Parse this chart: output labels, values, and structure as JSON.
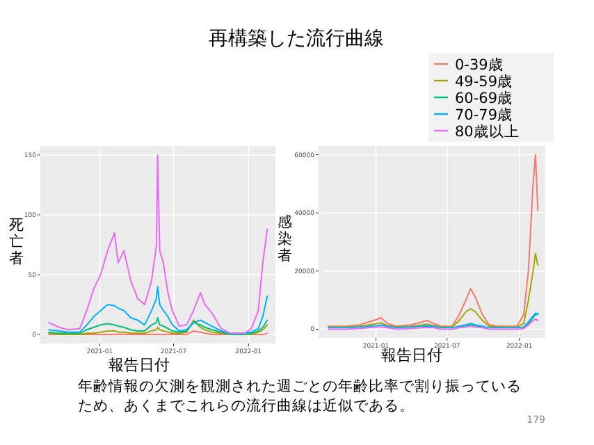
{
  "chart_data": [
    {
      "type": "line",
      "title": "再構築した流行曲線",
      "xlabel": "報告日付",
      "ylabel": "死亡者",
      "grid": true,
      "marker": "none",
      "line_style": "solid",
      "x": [
        "2020-08-29",
        "2020-09-23",
        "2020-10-16",
        "2020-11-13",
        "2020-11-30",
        "2020-12-17",
        "2021-01-03",
        "2021-01-20",
        "2021-02-06",
        "2021-02-15",
        "2021-03-01",
        "2021-03-18",
        "2021-04-04",
        "2021-04-21",
        "2021-05-08",
        "2021-05-20",
        "2021-05-23",
        "2021-05-28",
        "2021-06-06",
        "2021-06-17",
        "2021-06-28",
        "2021-07-15",
        "2021-08-02",
        "2021-08-19",
        "2021-09-05",
        "2021-09-16",
        "2021-10-03",
        "2021-10-26",
        "2021-11-17",
        "2021-12-22",
        "2022-01-08",
        "2022-01-25",
        "2022-02-05",
        "2022-02-16"
      ],
      "xlim": [
        "2020-08-08",
        "2022-03-08"
      ],
      "xticks": [
        {
          "value": "2021-01-01",
          "label": "2021-01"
        },
        {
          "value": "2021-07-01",
          "label": "2021-07"
        },
        {
          "value": "2022-01-01",
          "label": "2022-01"
        }
      ],
      "ylim": [
        -7.5,
        157.5
      ],
      "yticks": [
        0,
        50,
        100,
        150
      ],
      "series": [
        {
          "color": "#f8766d",
          "values": [
            0,
            0,
            0,
            0,
            0,
            0,
            0,
            0,
            0,
            0,
            0,
            0,
            0,
            0,
            0,
            0,
            0,
            0,
            0,
            0,
            0,
            0,
            0,
            3,
            2,
            1,
            0,
            0,
            0,
            0,
            0,
            0,
            0,
            1
          ]
        },
        {
          "color": "#a3a500",
          "values": [
            1,
            0,
            0,
            0,
            1,
            1,
            2,
            3,
            3,
            2,
            2,
            1,
            1,
            1,
            3,
            4,
            6,
            4,
            3,
            2,
            1,
            1,
            2,
            12,
            6,
            4,
            2,
            1,
            0,
            0,
            0,
            2,
            4,
            8
          ]
        },
        {
          "color": "#00bf7d",
          "values": [
            2,
            1,
            1,
            1,
            4,
            6,
            8,
            9,
            8,
            7,
            6,
            4,
            3,
            3,
            8,
            10,
            14,
            8,
            7,
            5,
            3,
            2,
            3,
            10,
            8,
            6,
            4,
            2,
            0,
            0,
            1,
            3,
            6,
            12
          ]
        },
        {
          "color": "#00b0f6",
          "values": [
            4,
            3,
            2,
            2,
            8,
            15,
            20,
            25,
            24,
            22,
            20,
            14,
            12,
            8,
            20,
            30,
            40,
            25,
            20,
            15,
            8,
            3,
            4,
            10,
            12,
            10,
            7,
            3,
            1,
            1,
            2,
            5,
            15,
            32
          ]
        },
        {
          "color": "#e76bf3",
          "values": [
            10,
            6,
            4,
            5,
            20,
            38,
            50,
            70,
            85,
            60,
            70,
            45,
            30,
            25,
            45,
            75,
            150,
            70,
            60,
            35,
            20,
            7,
            8,
            20,
            35,
            25,
            18,
            5,
            1,
            1,
            5,
            20,
            60,
            88
          ]
        }
      ]
    },
    {
      "type": "line",
      "xlabel": "報告日付",
      "ylabel": "感染者",
      "grid": true,
      "marker": "none",
      "line_style": "solid",
      "legend": "top right",
      "annotations": [
        "年齢情報の欠測を観測された週ごとの年齢比率で割り振っているため、あくまでこれらの流行曲線は近似である。",
        "179"
      ],
      "x": [
        "2020-09-02",
        "2020-10-17",
        "2020-11-21",
        "2020-12-14",
        "2021-01-07",
        "2021-01-13",
        "2021-01-30",
        "2021-02-23",
        "2021-03-30",
        "2021-04-29",
        "2021-05-10",
        "2021-05-28",
        "2021-06-15",
        "2021-07-14",
        "2021-08-01",
        "2021-08-18",
        "2021-08-30",
        "2021-09-11",
        "2021-09-29",
        "2021-10-16",
        "2021-11-09",
        "2021-12-26",
        "2022-01-12",
        "2022-01-24",
        "2022-02-05",
        "2022-02-11",
        "2022-02-17"
      ],
      "xlim": [
        "2020-08-08",
        "2022-03-08"
      ],
      "xticks": [
        {
          "value": "2021-01-01",
          "label": "2021-01"
        },
        {
          "value": "2021-07-01",
          "label": "2021-07"
        },
        {
          "value": "2022-01-01",
          "label": "2022-01"
        }
      ],
      "ylim": [
        -3000,
        63000
      ],
      "yticks": [
        0,
        20000,
        40000,
        60000
      ],
      "series": [
        {
          "name": "0-39歳",
          "color": "#f8766d",
          "values": [
            1000,
            1000,
            1500,
            2500,
            3500,
            4000,
            2000,
            1000,
            1500,
            2500,
            3000,
            2000,
            1000,
            1000,
            5000,
            10000,
            14000,
            11000,
            5000,
            1500,
            1000,
            1000,
            5000,
            20000,
            50000,
            60000,
            41000
          ]
        },
        {
          "name": "49-59歳",
          "color": "#a3a500",
          "values": [
            750,
            750,
            1000,
            1500,
            2000,
            2250,
            1250,
            750,
            1000,
            1500,
            1750,
            1250,
            750,
            750,
            3000,
            6000,
            7000,
            6000,
            3000,
            1000,
            750,
            750,
            2000,
            10000,
            20000,
            26000,
            22000
          ]
        },
        {
          "name": "60-69歳",
          "color": "#00bf7d",
          "values": [
            null,
            null,
            null,
            null,
            null,
            null,
            null,
            null,
            null,
            750,
            1000,
            750,
            null,
            null,
            750,
            1250,
            1500,
            1250,
            750,
            null,
            null,
            null,
            500,
            2000,
            4000,
            5000,
            5500
          ]
        },
        {
          "name": "70-79歳",
          "color": "#00b0f6",
          "values": [
            500,
            500,
            750,
            1000,
            1250,
            1500,
            1000,
            500,
            750,
            1000,
            1250,
            1000,
            500,
            500,
            1000,
            1500,
            2000,
            1500,
            1000,
            500,
            500,
            500,
            750,
            2500,
            4500,
            5500,
            5000
          ]
        },
        {
          "name": "80歳以上",
          "color": "#e76bf3",
          "values": [
            0,
            0,
            250,
            500,
            750,
            750,
            500,
            0,
            250,
            500,
            500,
            500,
            0,
            0,
            500,
            750,
            1000,
            750,
            500,
            0,
            0,
            0,
            250,
            1500,
            3000,
            3500,
            3000
          ]
        }
      ]
    }
  ]
}
